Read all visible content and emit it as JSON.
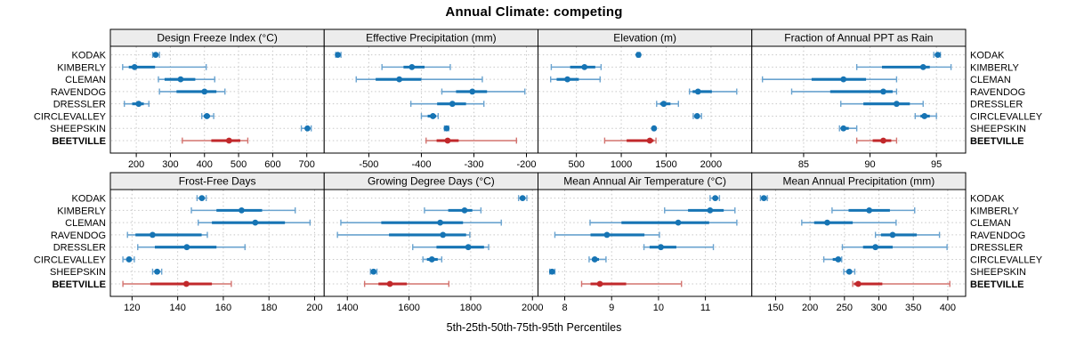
{
  "title": "Annual Climate: competing",
  "xlabel": "5th-25th-50th-75th-95th Percentiles",
  "sites": [
    "KODAK",
    "KIMBERLY",
    "CLEMAN",
    "RAVENDOG",
    "DRESSLER",
    "CIRCLEVALLEY",
    "SHEEPSKIN",
    "BEETVILLE"
  ],
  "highlight_site": "BEETVILLE",
  "colors": {
    "series": "#1674b4",
    "series_light": "#6aa3cf",
    "highlight": "#c1282b",
    "highlight_light": "#d3736f",
    "strip_bg": "#ececec",
    "panel_border": "#000000",
    "grid": "#c8c8c8",
    "text": "#000000"
  },
  "chart_data": {
    "type": "dotplot",
    "orientation": "horizontal",
    "grid": "2x4",
    "gridlines": "dotted",
    "percentiles": [
      "5th",
      "25th",
      "50th",
      "75th",
      "95th"
    ],
    "rows": [
      "KODAK",
      "KIMBERLY",
      "CLEMAN",
      "RAVENDOG",
      "DRESSLER",
      "CIRCLEVALLEY",
      "SHEEPSKIN",
      "BEETVILLE"
    ],
    "panels": [
      {
        "title": "Design Freeze Index (°C)",
        "xlim": [
          124,
          751
        ],
        "ticks": [
          200,
          300,
          400,
          500,
          600,
          700
        ],
        "values": {
          "KODAK": [
            248,
            253,
            257,
            261,
            268
          ],
          "KIMBERLY": [
            160,
            178,
            195,
            255,
            405
          ],
          "CLEMAN": [
            265,
            283,
            330,
            373,
            430
          ],
          "RAVENDOG": [
            268,
            318,
            400,
            435,
            460
          ],
          "DRESSLER": [
            165,
            188,
            207,
            222,
            237
          ],
          "CIRCLEVALLEY": [
            392,
            398,
            407,
            416,
            427
          ],
          "SHEEPSKIN": [
            684,
            695,
            702,
            708,
            713
          ],
          "BEETVILLE": [
            335,
            420,
            472,
            505,
            527
          ]
        }
      },
      {
        "title": "Effective Precipitation (mm)",
        "xlim": [
          -585,
          -178
        ],
        "ticks": [
          -500,
          -400,
          -300,
          -200
        ],
        "values": {
          "KODAK": [
            -563,
            -561,
            -559,
            -556,
            -553
          ],
          "KIMBERLY": [
            -475,
            -434,
            -418,
            -394,
            -345
          ],
          "CLEMAN": [
            -524,
            -487,
            -442,
            -400,
            -284
          ],
          "RAVENDOG": [
            -361,
            -334,
            -303,
            -275,
            -203
          ],
          "DRESSLER": [
            -420,
            -370,
            -341,
            -315,
            -281
          ],
          "CIRCLEVALLEY": [
            -400,
            -388,
            -378,
            -372,
            -368
          ],
          "SHEEPSKIN": [
            -356,
            -354,
            -352,
            -350,
            -348
          ],
          "BEETVILLE": [
            -391,
            -371,
            -350,
            -329,
            -219
          ]
        }
      },
      {
        "title": "Elevation (m)",
        "xlim": [
          72,
          2455
        ],
        "ticks": [
          500,
          1000,
          1500,
          2000
        ],
        "values": {
          "KODAK": [
            1178,
            1186,
            1192,
            1198,
            1208
          ],
          "KIMBERLY": [
            220,
            430,
            590,
            710,
            775
          ],
          "CLEMAN": [
            213,
            280,
            400,
            527,
            764
          ],
          "RAVENDOG": [
            1760,
            1795,
            1855,
            2010,
            2287
          ],
          "DRESSLER": [
            1394,
            1433,
            1473,
            1548,
            1637
          ],
          "CIRCLEVALLEY": [
            1802,
            1825,
            1845,
            1865,
            1894
          ],
          "SHEEPSKIN": [
            1357,
            1362,
            1365,
            1368,
            1373
          ],
          "BEETVILLE": [
            815,
            1060,
            1318,
            1360,
            1387
          ]
        }
      },
      {
        "title": "Fraction of Annual PPT as Rain",
        "xlim": [
          81.1,
          97.2
        ],
        "ticks": [
          85,
          90,
          95
        ],
        "values": {
          "KODAK": [
            94.8,
            95.0,
            95.1,
            95.2,
            95.3
          ],
          "KIMBERLY": [
            89.0,
            90.9,
            94.0,
            94.5,
            96.1
          ],
          "CLEMAN": [
            81.9,
            85.6,
            88.0,
            89.7,
            92.0
          ],
          "RAVENDOG": [
            84.1,
            87.0,
            91.0,
            91.7,
            92.0
          ],
          "DRESSLER": [
            87.8,
            89.5,
            92.0,
            93.0,
            94.0
          ],
          "CIRCLEVALLEY": [
            93.4,
            93.8,
            94.1,
            94.5,
            95.0
          ],
          "SHEEPSKIN": [
            87.7,
            87.9,
            88.0,
            88.4,
            89.0
          ],
          "BEETVILLE": [
            89.0,
            90.2,
            91.0,
            91.6,
            92.0
          ]
        }
      },
      {
        "title": "Frost-Free Days",
        "xlim": [
          110.5,
          204.2
        ],
        "ticks": [
          120,
          140,
          160,
          180,
          200
        ],
        "values": {
          "KODAK": [
            148.5,
            149.8,
            150.6,
            151.3,
            152.5
          ],
          "KIMBERLY": [
            146,
            157,
            168,
            177,
            191.5
          ],
          "CLEMAN": [
            149,
            155,
            174,
            187,
            198
          ],
          "RAVENDOG": [
            118,
            121.5,
            129,
            150.5,
            153
          ],
          "DRESSLER": [
            122.5,
            130,
            144,
            157,
            169.5
          ],
          "CIRCLEVALLEY": [
            116,
            117.7,
            118.7,
            119.8,
            121
          ],
          "SHEEPSKIN": [
            129,
            130.3,
            131,
            131.9,
            133
          ],
          "BEETVILLE": [
            116,
            128,
            143.8,
            155,
            163.5
          ]
        }
      },
      {
        "title": "Growing Degree Days (°C)",
        "xlim": [
          1325,
          2018
        ],
        "ticks": [
          1400,
          1600,
          1800,
          2000
        ],
        "values": {
          "KODAK": [
            1955,
            1963,
            1968,
            1974,
            1982
          ],
          "KIMBERLY": [
            1650,
            1727,
            1780,
            1805,
            1833
          ],
          "CLEMAN": [
            1379,
            1510,
            1701,
            1775,
            1899
          ],
          "RAVENDOG": [
            1368,
            1535,
            1710,
            1785,
            1797
          ],
          "DRESSLER": [
            1612,
            1689,
            1792,
            1843,
            1858
          ],
          "CIRCLEVALLEY": [
            1645,
            1658,
            1674,
            1693,
            1706
          ],
          "SHEEPSKIN": [
            1475,
            1481,
            1485,
            1490,
            1496
          ],
          "BEETVILLE": [
            1456,
            1501,
            1538,
            1593,
            1729
          ]
        }
      },
      {
        "title": "Mean Annual Air Temperature (°C)",
        "xlim": [
          7.43,
          11.99
        ],
        "ticks": [
          8,
          9,
          10,
          11
        ],
        "values": {
          "KODAK": [
            11.1,
            11.16,
            11.21,
            11.25,
            11.3
          ],
          "KIMBERLY": [
            10.13,
            10.63,
            11.1,
            11.39,
            11.63
          ],
          "CLEMAN": [
            8.54,
            9.21,
            10.42,
            11.08,
            11.67
          ],
          "RAVENDOG": [
            7.79,
            8.55,
            8.9,
            9.7,
            10.02
          ],
          "DRESSLER": [
            9.69,
            9.81,
            10.05,
            10.38,
            11.17
          ],
          "CIRCLEVALLEY": [
            8.52,
            8.58,
            8.64,
            8.73,
            8.88
          ],
          "SHEEPSKIN": [
            7.68,
            7.71,
            7.73,
            7.76,
            7.79
          ],
          "BEETVILLE": [
            8.36,
            8.55,
            8.75,
            9.31,
            10.49
          ]
        }
      },
      {
        "title": "Mean Annual Precipitation (mm)",
        "xlim": [
          115.5,
          426
        ],
        "ticks": [
          150,
          200,
          250,
          300,
          350,
          400
        ],
        "values": {
          "KODAK": [
            128,
            131,
            133,
            135,
            138
          ],
          "KIMBERLY": [
            232,
            256,
            286,
            316,
            352
          ],
          "CLEMAN": [
            188,
            206,
            225,
            262,
            325
          ],
          "RAVENDOG": [
            295,
            303,
            320,
            355,
            388
          ],
          "DRESSLER": [
            247,
            277,
            295,
            320,
            399
          ],
          "CIRCLEVALLEY": [
            220,
            233,
            241,
            244,
            246
          ],
          "SHEEPSKIN": [
            249,
            253,
            257,
            261,
            265
          ],
          "BEETVILLE": [
            262,
            264,
            270,
            305,
            403
          ]
        }
      }
    ]
  }
}
